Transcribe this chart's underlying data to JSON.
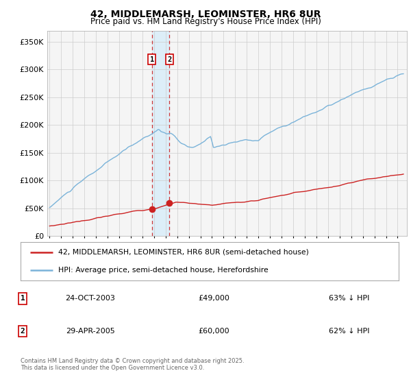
{
  "title1": "42, MIDDLEMARSH, LEOMINSTER, HR6 8UR",
  "title2": "Price paid vs. HM Land Registry's House Price Index (HPI)",
  "legend1": "42, MIDDLEMARSH, LEOMINSTER, HR6 8UR (semi-detached house)",
  "legend2": "HPI: Average price, semi-detached house, Herefordshire",
  "sale1_date": "24-OCT-2003",
  "sale1_price": 49000,
  "sale1_hpi": "63% ↓ HPI",
  "sale2_date": "29-APR-2005",
  "sale2_price": 60000,
  "sale2_hpi": "62% ↓ HPI",
  "footer": "Contains HM Land Registry data © Crown copyright and database right 2025.\nThis data is licensed under the Open Government Licence v3.0.",
  "hpi_color": "#7ab3d9",
  "property_color": "#cc2222",
  "sale_marker_color": "#cc2222",
  "vline_color": "#cc2222",
  "vshade_color": "#ddeef8",
  "grid_color": "#cccccc",
  "bg_color": "#ffffff",
  "plot_bg_color": "#f5f5f5",
  "ylim": [
    0,
    370000
  ],
  "yticks": [
    0,
    50000,
    100000,
    150000,
    200000,
    250000,
    300000,
    350000
  ],
  "ytick_labels": [
    "£0",
    "£50K",
    "£100K",
    "£150K",
    "£200K",
    "£250K",
    "£300K",
    "£350K"
  ],
  "sale1_x": 2003.82,
  "sale2_x": 2005.33,
  "xlim_start": 1994.8,
  "xlim_end": 2025.8
}
